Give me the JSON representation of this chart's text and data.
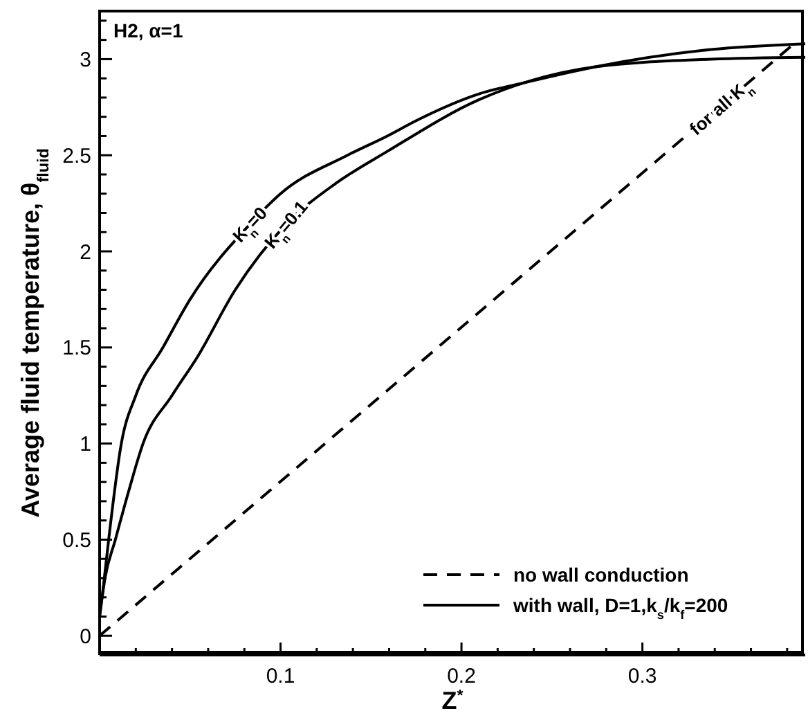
{
  "chart_data": {
    "type": "line",
    "xlabel": "Z$^{*}$",
    "ylabel": "Average fluid temperature, θ$_{fluid}$",
    "xlim": [
      0,
      0.39
    ],
    "ylim": [
      -0.1,
      3.25
    ],
    "xticks": [
      {
        "value": 0.02,
        "label": null
      },
      {
        "value": 0.04,
        "label": null
      },
      {
        "value": 0.06,
        "label": null
      },
      {
        "value": 0.08,
        "label": null
      },
      0.1,
      {
        "value": 0.12,
        "label": null
      },
      {
        "value": 0.14,
        "label": null
      },
      {
        "value": 0.16,
        "label": null
      },
      {
        "value": 0.18,
        "label": null
      },
      0.2,
      {
        "value": 0.22,
        "label": null
      },
      {
        "value": 0.24,
        "label": null
      },
      {
        "value": 0.26,
        "label": null
      },
      {
        "value": 0.28,
        "label": null
      },
      0.3,
      {
        "value": 0.32,
        "label": null
      },
      {
        "value": 0.34,
        "label": null
      },
      {
        "value": 0.36,
        "label": null
      },
      {
        "value": 0.38,
        "label": null
      }
    ],
    "yticks": [
      0,
      {
        "value": 0.1,
        "label": null
      },
      {
        "value": 0.2,
        "label": null
      },
      {
        "value": 0.3,
        "label": null
      },
      {
        "value": 0.4,
        "label": null
      },
      0.5,
      {
        "value": 0.6,
        "label": null
      },
      {
        "value": 0.7,
        "label": null
      },
      {
        "value": 0.8,
        "label": null
      },
      {
        "value": 0.9,
        "label": null
      },
      1,
      {
        "value": 1.1,
        "label": null
      },
      {
        "value": 1.2,
        "label": null
      },
      {
        "value": 1.3,
        "label": null
      },
      {
        "value": 1.4,
        "label": null
      },
      1.5,
      {
        "value": 1.6,
        "label": null
      },
      {
        "value": 1.7,
        "label": null
      },
      {
        "value": 1.8,
        "label": null
      },
      {
        "value": 1.9,
        "label": null
      },
      2,
      {
        "value": 2.1,
        "label": null
      },
      {
        "value": 2.2,
        "label": null
      },
      {
        "value": 2.3,
        "label": null
      },
      {
        "value": 2.4,
        "label": null
      },
      2.5,
      {
        "value": 2.6,
        "label": null
      },
      {
        "value": 2.7,
        "label": null
      },
      {
        "value": 2.8,
        "label": null
      },
      {
        "value": 2.9,
        "label": null
      },
      3,
      {
        "value": 3.1,
        "label": null
      },
      {
        "value": 3.2,
        "label": null
      }
    ],
    "legend": "bottom right",
    "marker": "none",
    "series": [
      {
        "name": "no wall conduction",
        "color": "#000000",
        "line_style": "dashed",
        "x": [
          0,
          0.385
        ],
        "values": [
          0,
          3.09
        ]
      },
      {
        "name": "with wall, D=1,k$_{s}$/k$_{f}$=200",
        "color": "#000000",
        "line_style": "solid",
        "x": [
          0,
          0.002,
          0.005,
          0.012,
          0.02,
          0.035,
          0.05,
          0.083,
          0.1,
          0.137,
          0.159,
          0.175,
          0.21,
          0.236,
          0.274,
          0.338,
          0.39
        ],
        "values": [
          0.1,
          0.25,
          0.5,
          1.0,
          1.25,
          1.5,
          1.75,
          2.14,
          2.3,
          2.5,
          2.6,
          2.68,
          2.82,
          2.88,
          2.96,
          3.05,
          3.08
        ]
      },
      {
        "color": "#000000",
        "line_style": "solid",
        "x": [
          0,
          0.003,
          0.0087,
          0.016,
          0.024,
          0.04,
          0.054,
          0.075,
          0.103,
          0.13,
          0.159,
          0.21,
          0.274,
          0.338,
          0.39
        ],
        "values": [
          0.1,
          0.3,
          0.5,
          0.75,
          1.0,
          1.25,
          1.45,
          1.8,
          2.14,
          2.35,
          2.52,
          2.79,
          2.96,
          3.0,
          3.01
        ]
      }
    ],
    "annotations": [
      "H2, α=1",
      {
        "text": "K$_{n}$=0",
        "x": 0.083,
        "y": 2.14
      },
      {
        "text": "K$_{n}$=0.1",
        "x": 0.103,
        "y": 2.14
      },
      {
        "text": "for all K$_{n}$",
        "x": 0.343,
        "y": 2.75
      }
    ]
  }
}
